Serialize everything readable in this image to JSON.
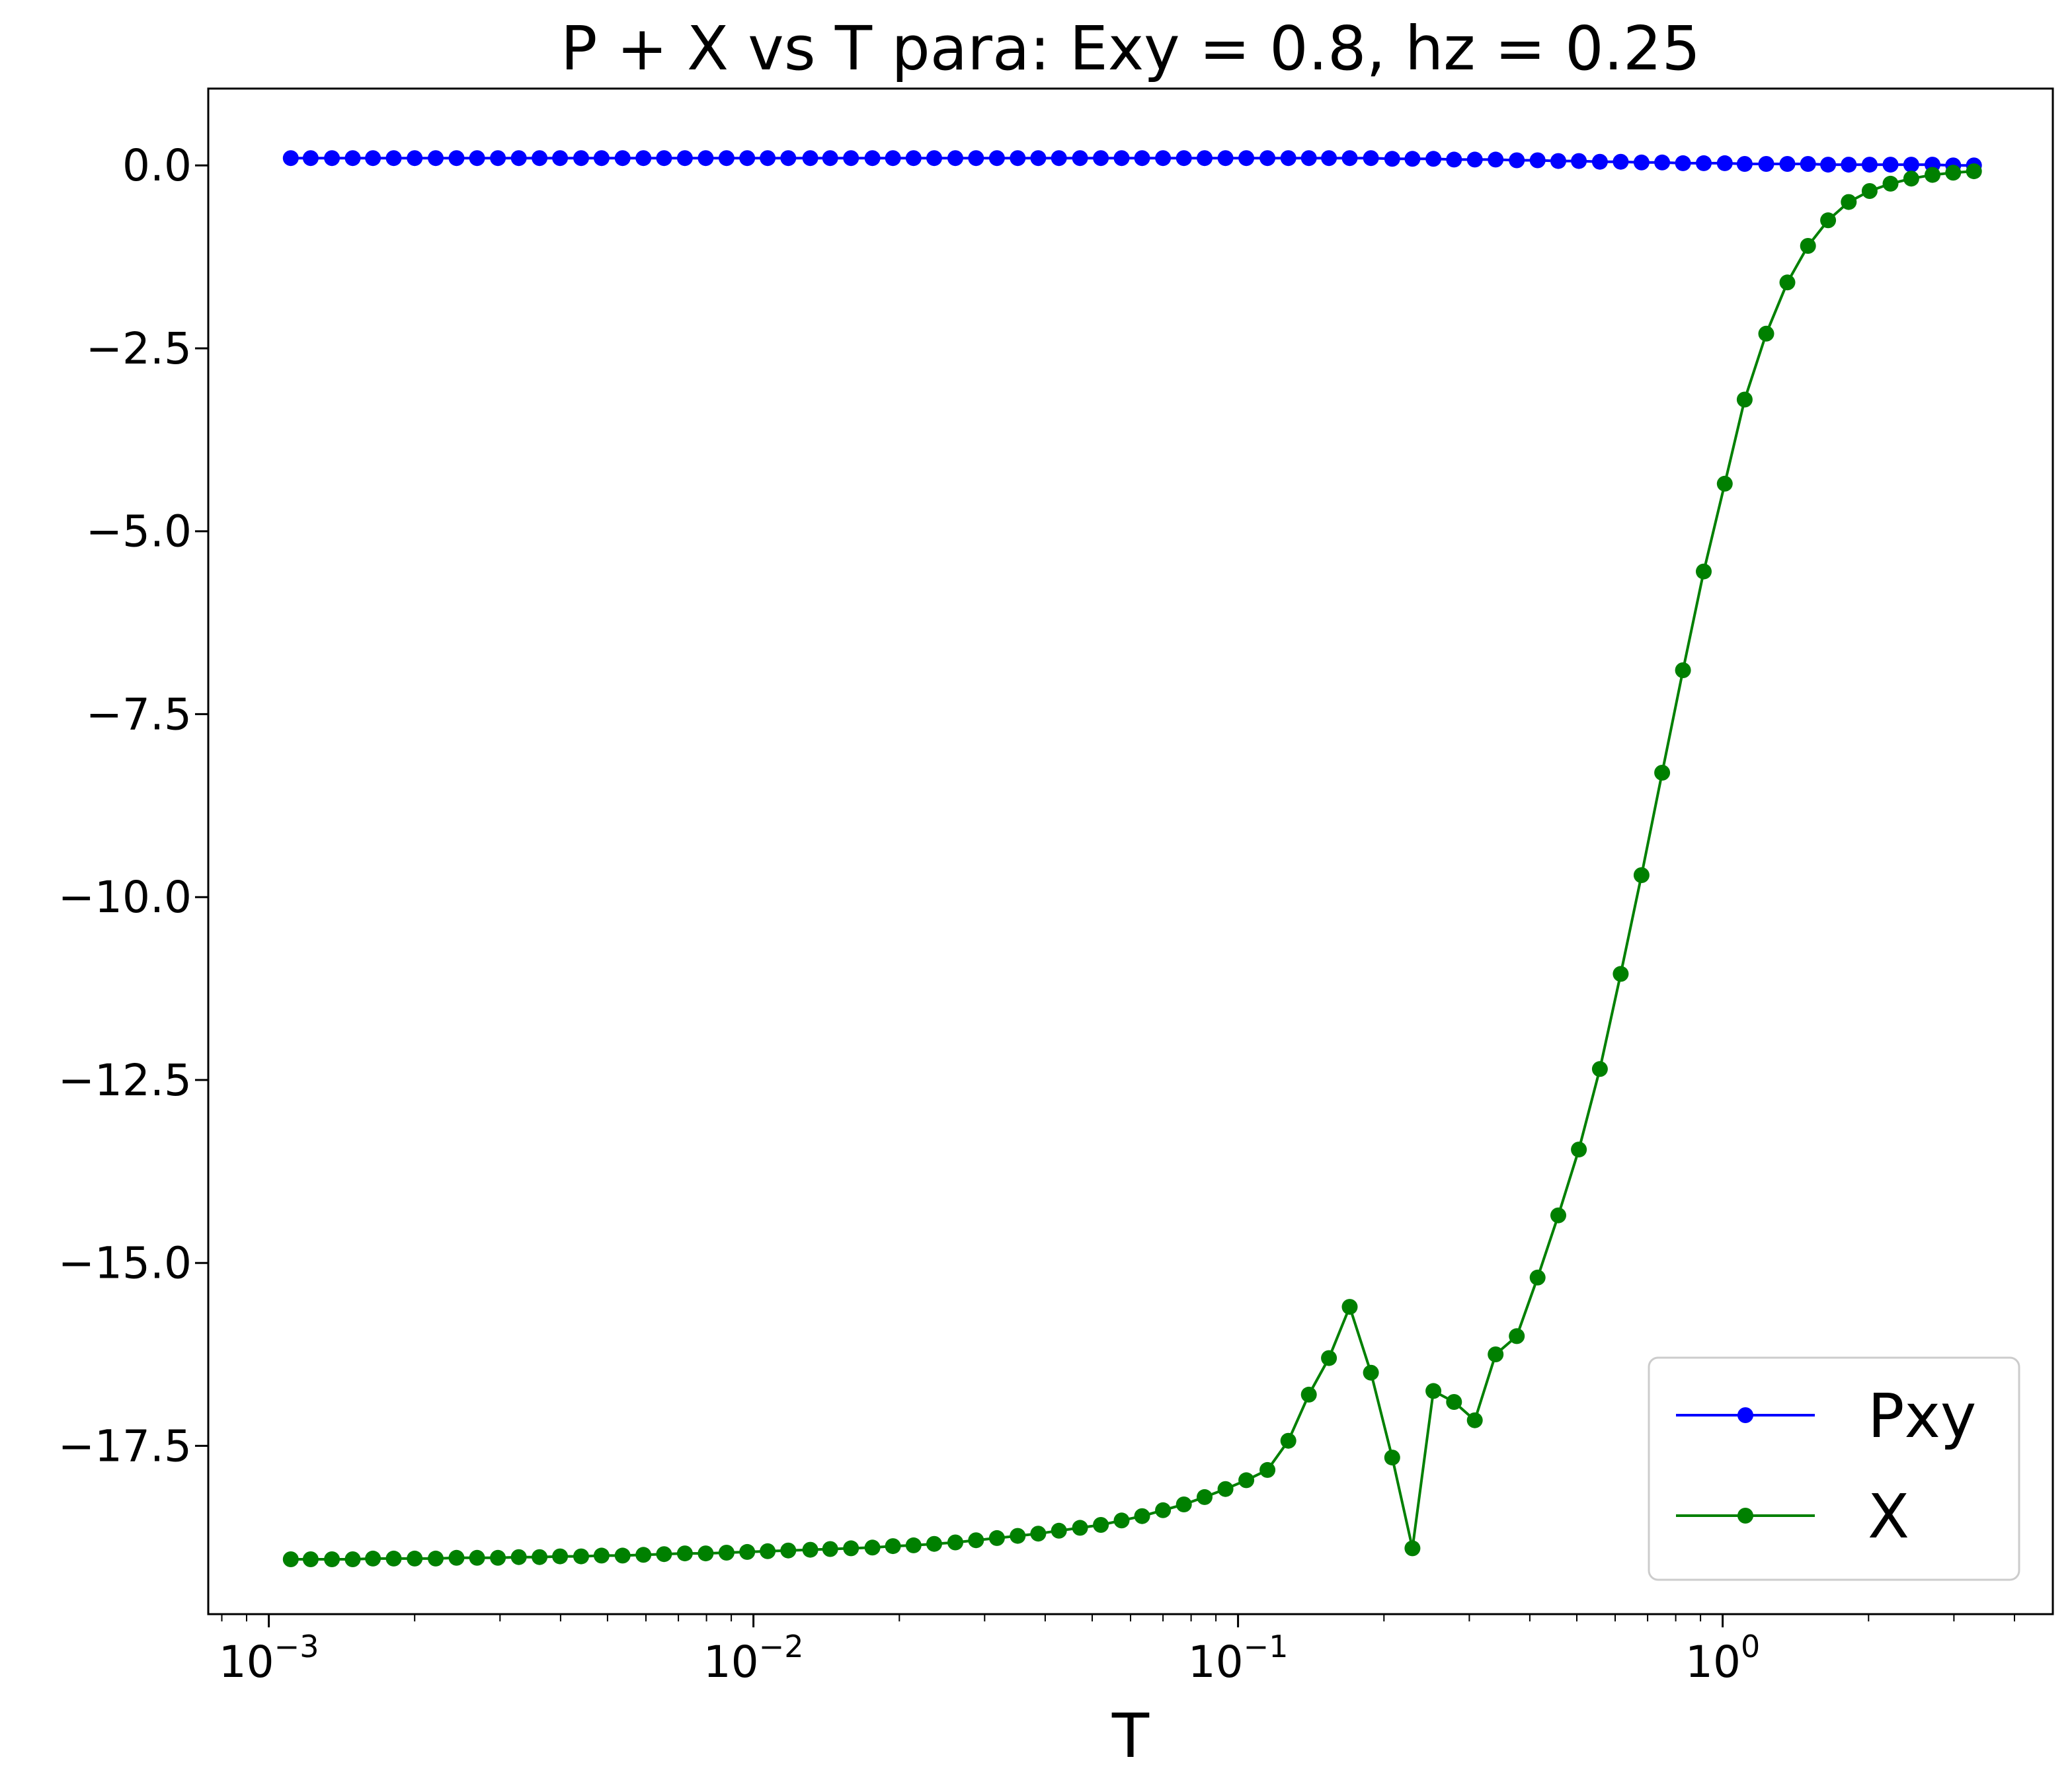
{
  "chart_data": {
    "type": "line",
    "title": "P + X vs T para: Exy = 0.8, hz = 0.25",
    "xlabel": "T",
    "ylabel": "",
    "xscale": "log",
    "xlim": [
      0.00075,
      4.8
    ],
    "ylim": [
      -19.8,
      1.05
    ],
    "x_ticks": [
      {
        "value": 0.001,
        "base": "10",
        "exp": "−3"
      },
      {
        "value": 0.01,
        "base": "10",
        "exp": "−2"
      },
      {
        "value": 0.1,
        "base": "10",
        "exp": "−1"
      },
      {
        "value": 1,
        "base": "10",
        "exp": "0"
      }
    ],
    "y_ticks": [
      {
        "value": 0,
        "label": "0.0"
      },
      {
        "value": -2.5,
        "label": "−2.5"
      },
      {
        "value": -5,
        "label": "−5.0"
      },
      {
        "value": -7.5,
        "label": "−7.5"
      },
      {
        "value": -10,
        "label": "−10.0"
      },
      {
        "value": -12.5,
        "label": "−12.5"
      },
      {
        "value": -15,
        "label": "−15.0"
      },
      {
        "value": -17.5,
        "label": "−17.5"
      }
    ],
    "grid": false,
    "legend_position": "bottom-right",
    "series": [
      {
        "name": "Pxy",
        "color": "#0000ff",
        "x": [
          0.00111,
          0.00122,
          0.00135,
          0.00149,
          0.00164,
          0.00181,
          0.002,
          0.00221,
          0.00244,
          0.00269,
          0.00297,
          0.00328,
          0.00362,
          0.00399,
          0.00441,
          0.00486,
          0.00537,
          0.00593,
          0.00654,
          0.00722,
          0.00797,
          0.0088,
          0.00971,
          0.0107,
          0.0118,
          0.0131,
          0.0144,
          0.0159,
          0.0176,
          0.0194,
          0.0214,
          0.0236,
          0.0261,
          0.0288,
          0.0318,
          0.0351,
          0.0387,
          0.0427,
          0.0472,
          0.0521,
          0.0575,
          0.0634,
          0.07,
          0.0773,
          0.0853,
          0.0942,
          0.104,
          0.115,
          0.127,
          0.14,
          0.154,
          0.17,
          0.188,
          0.208,
          0.229,
          0.253,
          0.279,
          0.308,
          0.34,
          0.376,
          0.415,
          0.458,
          0.505,
          0.558,
          0.616,
          0.68,
          0.75,
          0.828,
          0.914,
          1.01,
          1.11,
          1.23,
          1.36,
          1.5,
          1.65,
          1.82,
          2.01,
          2.22,
          2.45,
          2.71,
          2.99,
          3.3
        ],
        "y": [
          0.1,
          0.1,
          0.1,
          0.1,
          0.1,
          0.1,
          0.1,
          0.1,
          0.1,
          0.1,
          0.1,
          0.1,
          0.1,
          0.1,
          0.1,
          0.1,
          0.1,
          0.1,
          0.1,
          0.1,
          0.1,
          0.1,
          0.1,
          0.1,
          0.1,
          0.1,
          0.1,
          0.1,
          0.1,
          0.1,
          0.1,
          0.1,
          0.1,
          0.1,
          0.1,
          0.1,
          0.1,
          0.1,
          0.1,
          0.1,
          0.1,
          0.1,
          0.1,
          0.1,
          0.1,
          0.1,
          0.1,
          0.1,
          0.1,
          0.1,
          0.1,
          0.1,
          0.1,
          0.09,
          0.09,
          0.09,
          0.08,
          0.08,
          0.08,
          0.07,
          0.07,
          0.06,
          0.06,
          0.05,
          0.05,
          0.04,
          0.04,
          0.03,
          0.03,
          0.03,
          0.02,
          0.02,
          0.02,
          0.02,
          0.01,
          0.01,
          0.01,
          0.01,
          0.01,
          0.01,
          0.0,
          0.0
        ]
      },
      {
        "name": "X",
        "color": "#008000",
        "x": [
          0.00111,
          0.00122,
          0.00135,
          0.00149,
          0.00164,
          0.00181,
          0.002,
          0.00221,
          0.00244,
          0.00269,
          0.00297,
          0.00328,
          0.00362,
          0.00399,
          0.00441,
          0.00486,
          0.00537,
          0.00593,
          0.00654,
          0.00722,
          0.00797,
          0.0088,
          0.00971,
          0.0107,
          0.0118,
          0.0131,
          0.0144,
          0.0159,
          0.0176,
          0.0194,
          0.0214,
          0.0236,
          0.0261,
          0.0288,
          0.0318,
          0.0351,
          0.0387,
          0.0427,
          0.0472,
          0.0521,
          0.0575,
          0.0634,
          0.07,
          0.0773,
          0.0853,
          0.0942,
          0.104,
          0.115,
          0.127,
          0.14,
          0.154,
          0.17,
          0.188,
          0.208,
          0.229,
          0.253,
          0.279,
          0.308,
          0.34,
          0.376,
          0.415,
          0.458,
          0.505,
          0.558,
          0.616,
          0.68,
          0.75,
          0.828,
          0.914,
          1.01,
          1.11,
          1.23,
          1.36,
          1.5,
          1.65,
          1.82,
          2.01,
          2.22,
          2.45,
          2.71,
          2.99,
          3.3
        ],
        "y": [
          -19.05,
          -19.05,
          -19.05,
          -19.05,
          -19.04,
          -19.04,
          -19.04,
          -19.04,
          -19.03,
          -19.03,
          -19.03,
          -19.02,
          -19.02,
          -19.01,
          -19.01,
          -19.0,
          -19.0,
          -18.99,
          -18.98,
          -18.97,
          -18.97,
          -18.96,
          -18.95,
          -18.94,
          -18.93,
          -18.92,
          -18.91,
          -18.9,
          -18.89,
          -18.87,
          -18.86,
          -18.84,
          -18.82,
          -18.79,
          -18.76,
          -18.73,
          -18.7,
          -18.66,
          -18.62,
          -18.58,
          -18.52,
          -18.46,
          -18.38,
          -18.3,
          -18.2,
          -18.09,
          -17.97,
          -17.83,
          -17.43,
          -16.8,
          -16.3,
          -15.6,
          -16.5,
          -17.66,
          -18.9,
          -16.75,
          -16.9,
          -17.15,
          -16.25,
          -16.0,
          -15.2,
          -14.35,
          -13.45,
          -12.35,
          -11.05,
          -9.7,
          -8.3,
          -6.9,
          -5.55,
          -4.35,
          -3.2,
          -2.3,
          -1.6,
          -1.1,
          -0.75,
          -0.5,
          -0.35,
          -0.25,
          -0.18,
          -0.13,
          -0.1,
          -0.08
        ]
      }
    ]
  }
}
